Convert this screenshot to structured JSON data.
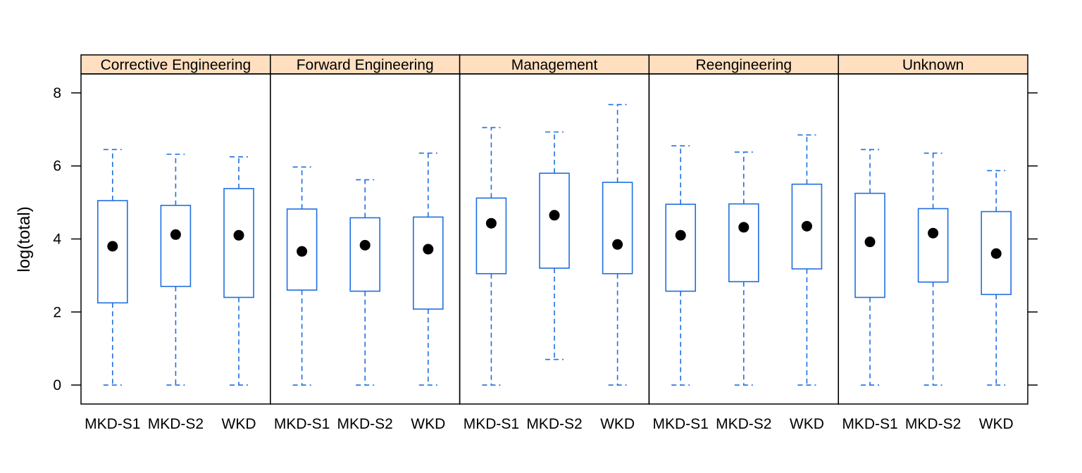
{
  "chart_data": {
    "type": "boxplot",
    "ylabel": "log(total)",
    "xlabel": "",
    "ylim": [
      -0.52,
      8.52
    ],
    "yticks": [
      0,
      2,
      4,
      6,
      8
    ],
    "categories": [
      "MKD-S1",
      "MKD-S2",
      "WKD"
    ],
    "panels": [
      {
        "name": "Corrective Engineering",
        "boxes": [
          {
            "category": "MKD-S1",
            "min": 0,
            "q1": 2.25,
            "median": 3.8,
            "q3": 5.05,
            "max": 6.45
          },
          {
            "category": "MKD-S2",
            "min": 0,
            "q1": 2.7,
            "median": 4.12,
            "q3": 4.92,
            "max": 6.32
          },
          {
            "category": "WKD",
            "min": 0,
            "q1": 2.4,
            "median": 4.1,
            "q3": 5.38,
            "max": 6.25
          }
        ]
      },
      {
        "name": "Forward Engineering",
        "boxes": [
          {
            "category": "MKD-S1",
            "min": 0,
            "q1": 2.6,
            "median": 3.66,
            "q3": 4.82,
            "max": 5.97
          },
          {
            "category": "MKD-S2",
            "min": 0,
            "q1": 2.57,
            "median": 3.83,
            "q3": 4.58,
            "max": 5.62
          },
          {
            "category": "WKD",
            "min": 0,
            "q1": 2.08,
            "median": 3.72,
            "q3": 4.6,
            "max": 6.35
          }
        ]
      },
      {
        "name": "Management",
        "boxes": [
          {
            "category": "MKD-S1",
            "min": 0,
            "q1": 3.05,
            "median": 4.43,
            "q3": 5.12,
            "max": 7.05
          },
          {
            "category": "MKD-S2",
            "min": 0.7,
            "q1": 3.2,
            "median": 4.65,
            "q3": 5.8,
            "max": 6.93
          },
          {
            "category": "WKD",
            "min": 0,
            "q1": 3.05,
            "median": 3.85,
            "q3": 5.55,
            "max": 7.68
          }
        ]
      },
      {
        "name": "Reengineering",
        "boxes": [
          {
            "category": "MKD-S1",
            "min": 0,
            "q1": 2.57,
            "median": 4.1,
            "q3": 4.95,
            "max": 6.55
          },
          {
            "category": "MKD-S2",
            "min": 0,
            "q1": 2.83,
            "median": 4.32,
            "q3": 4.96,
            "max": 6.38
          },
          {
            "category": "WKD",
            "min": 0,
            "q1": 3.18,
            "median": 4.35,
            "q3": 5.5,
            "max": 6.85
          }
        ]
      },
      {
        "name": "Unknown",
        "boxes": [
          {
            "category": "MKD-S1",
            "min": 0,
            "q1": 2.4,
            "median": 3.92,
            "q3": 5.25,
            "max": 6.45
          },
          {
            "category": "MKD-S2",
            "min": 0,
            "q1": 2.82,
            "median": 4.16,
            "q3": 4.83,
            "max": 6.35
          },
          {
            "category": "WKD",
            "min": 0,
            "q1": 2.48,
            "median": 3.6,
            "q3": 4.75,
            "max": 5.87
          }
        ]
      }
    ],
    "grid": false,
    "legend": "none",
    "colors": {
      "box": "#1f6fe0",
      "median_dot": "#000000",
      "strip_background": "#ffdfbf",
      "frame": "#000000"
    }
  }
}
